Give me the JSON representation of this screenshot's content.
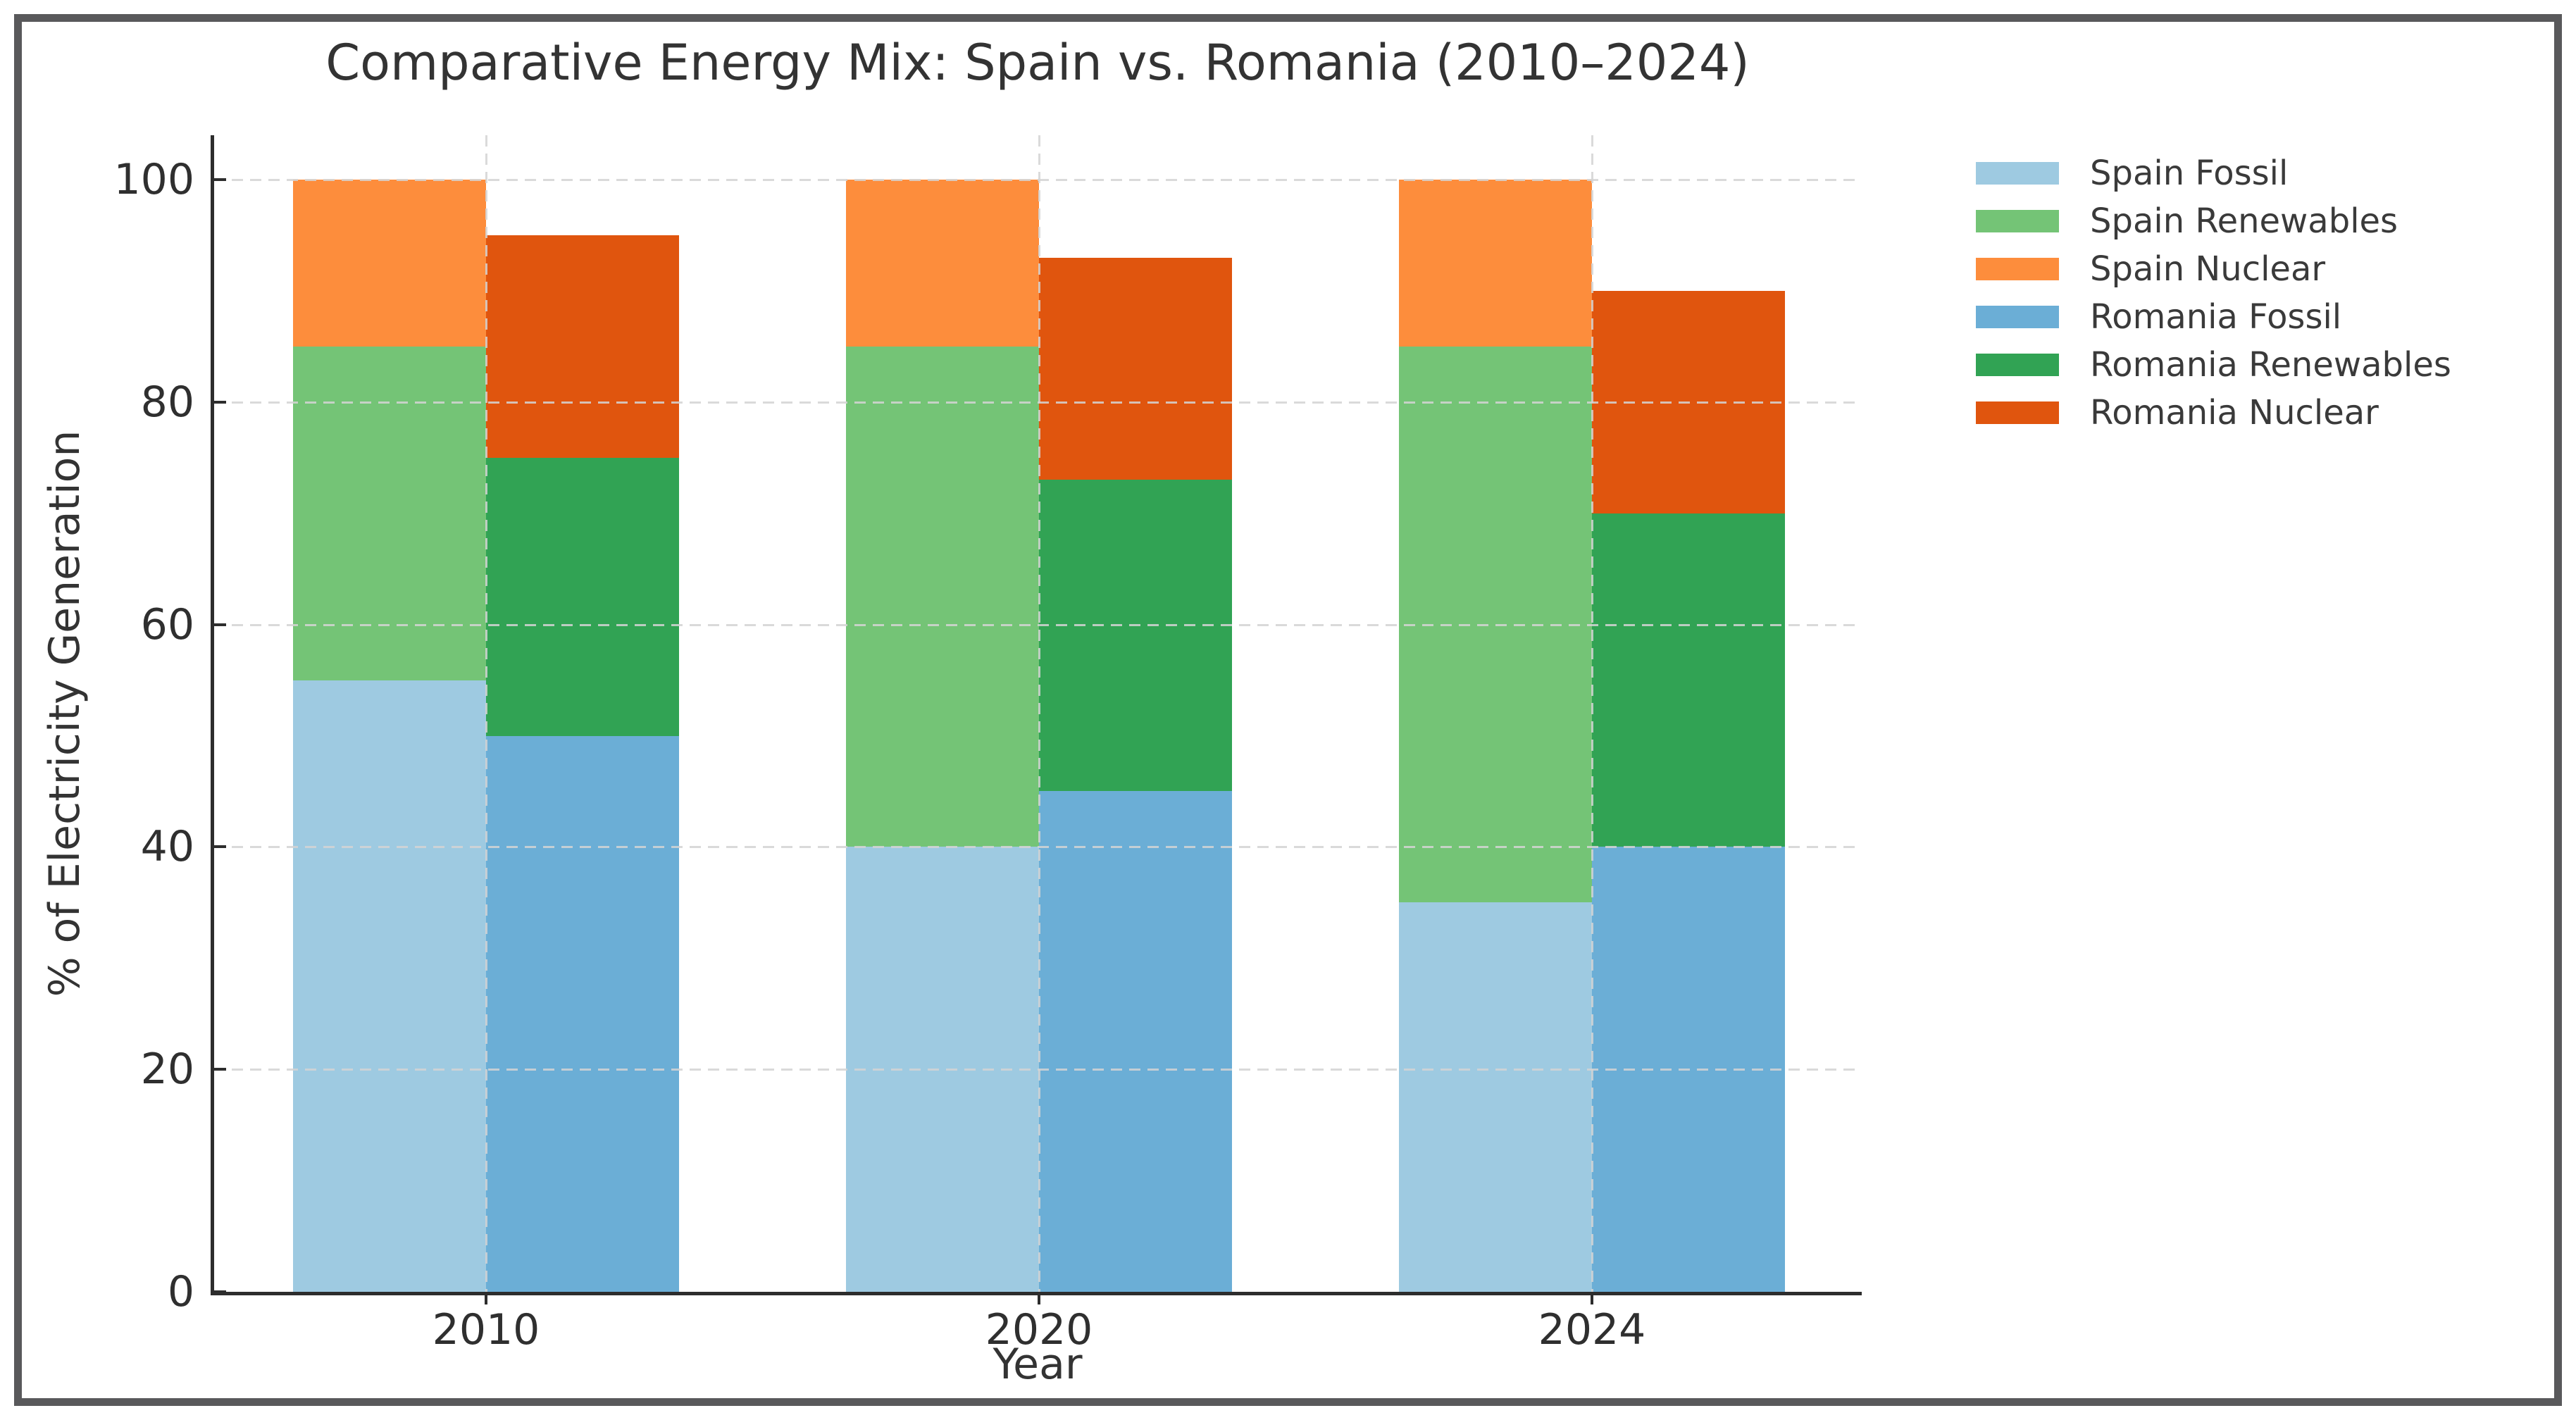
{
  "chart_data": {
    "type": "bar",
    "stacked": true,
    "title": "Comparative Energy Mix: Spain vs. Romania (2010–2024)",
    "xlabel": "Year",
    "ylabel": "% of Electricity Generation",
    "categories": [
      "2010",
      "2020",
      "2024"
    ],
    "ylim": [
      0,
      100
    ],
    "yticks": [
      0,
      20,
      40,
      60,
      80,
      100
    ],
    "grid": true,
    "grid_style": "dashed",
    "legend_position": "upper-right-outside",
    "groups": [
      "Spain",
      "Romania"
    ],
    "series": [
      {
        "name": "Spain Fossil",
        "group": "Spain",
        "color": "#9ecae1",
        "values": [
          55,
          40,
          35
        ]
      },
      {
        "name": "Spain Renewables",
        "group": "Spain",
        "color": "#74c476",
        "values": [
          30,
          45,
          50
        ]
      },
      {
        "name": "Spain Nuclear",
        "group": "Spain",
        "color": "#fd8d3c",
        "values": [
          15,
          15,
          15
        ]
      },
      {
        "name": "Romania Fossil",
        "group": "Romania",
        "color": "#6baed6",
        "values": [
          50,
          45,
          40
        ]
      },
      {
        "name": "Romania Renewables",
        "group": "Romania",
        "color": "#31a354",
        "values": [
          25,
          28,
          30
        ]
      },
      {
        "name": "Romania Nuclear",
        "group": "Romania",
        "color": "#e0550e",
        "values": [
          20,
          20,
          20
        ]
      }
    ],
    "stack_totals": {
      "Spain": [
        100,
        100,
        100
      ],
      "Romania": [
        95,
        93,
        90
      ]
    }
  },
  "figure": {
    "border_color": "#59595b",
    "background": "#ffffff"
  }
}
